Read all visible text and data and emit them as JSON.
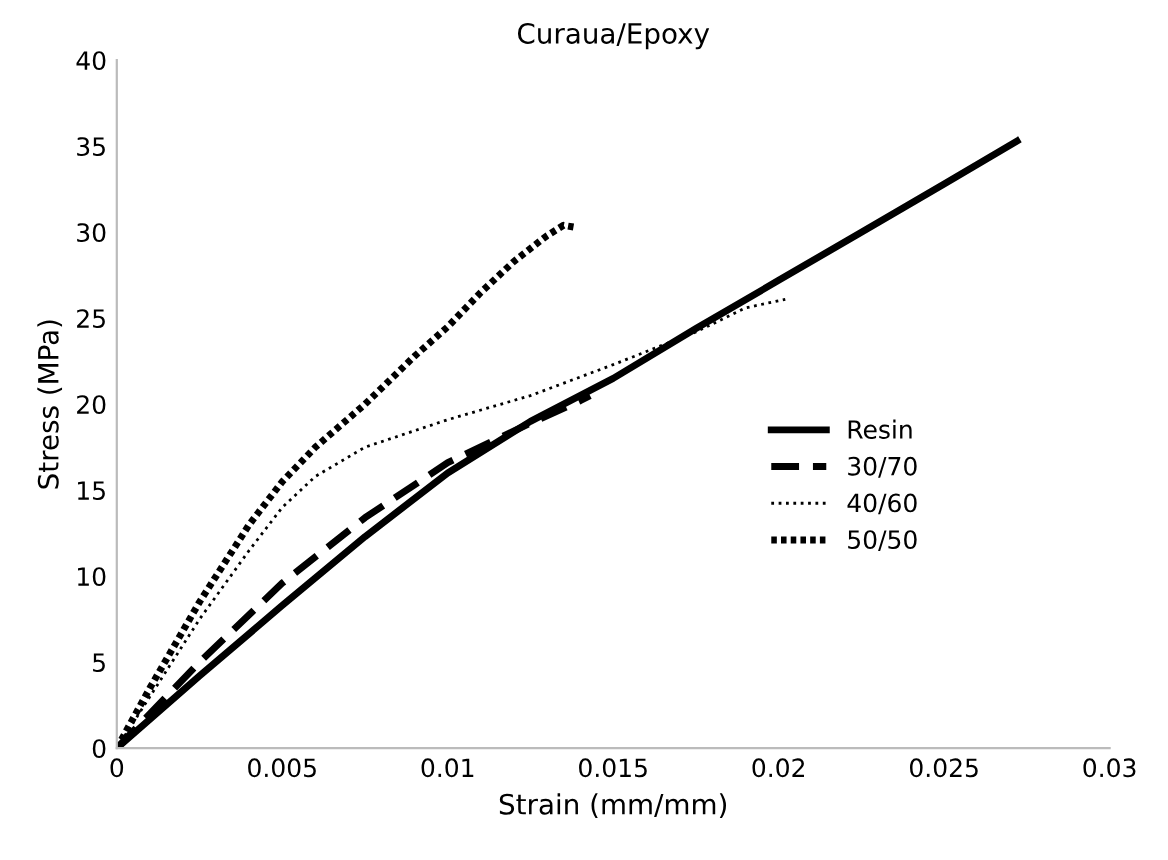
{
  "chart_data": {
    "type": "line",
    "title": "Curaua/Epoxy",
    "xlabel": "Strain (mm/mm)",
    "ylabel": "Stress (MPa)",
    "xlim": [
      0,
      0.03
    ],
    "xticks": [
      0,
      0.005,
      0.01,
      0.015,
      0.02,
      0.025,
      0.03
    ],
    "ylim": [
      0,
      40
    ],
    "yticks": [
      0,
      5,
      10,
      15,
      20,
      25,
      30,
      35,
      40
    ],
    "grid": false,
    "legend": "right",
    "marker": "none",
    "series": [
      {
        "name": "Resin",
        "color": "#000000",
        "line_style": "solid",
        "x": [
          0,
          0.0025,
          0.005,
          0.0075,
          0.01,
          0.0125,
          0.015,
          0.0175,
          0.02,
          0.0225,
          0.025,
          0.0272
        ],
        "values": [
          0,
          4.2,
          8.3,
          12.3,
          16,
          19.0,
          21.5,
          24.4,
          27.2,
          30,
          32.8,
          35.3
        ]
      },
      {
        "name": "30/70",
        "color": "#000000",
        "line_style": "dashed",
        "x": [
          0,
          0.0025,
          0.005,
          0.0075,
          0.01,
          0.0125,
          0.014,
          0.0143
        ],
        "values": [
          0,
          5,
          9.6,
          13.4,
          16.6,
          18.9,
          20.2,
          20.5
        ]
      },
      {
        "name": "40/60",
        "color": "#000000",
        "line_style": "dotted",
        "x": [
          0,
          0.001,
          0.0025,
          0.004,
          0.005,
          0.006,
          0.0075,
          0.01,
          0.0125,
          0.015,
          0.0175,
          0.019,
          0.0202
        ],
        "values": [
          0,
          3,
          7.5,
          11.5,
          14,
          15.8,
          17.5,
          19.1,
          20.5,
          22.3,
          24.2,
          25.6,
          26.1
        ]
      },
      {
        "name": "50/50",
        "color": "#000000",
        "line_style": "dotted",
        "x": [
          0,
          0.001,
          0.0025,
          0.004,
          0.005,
          0.006,
          0.0075,
          0.009,
          0.01,
          0.011,
          0.012,
          0.013,
          0.0135,
          0.0138
        ],
        "values": [
          0,
          3.5,
          8.5,
          13,
          15.5,
          17.5,
          20,
          22.8,
          24.5,
          26.5,
          28.3,
          29.8,
          30.4,
          30.3
        ]
      }
    ]
  }
}
